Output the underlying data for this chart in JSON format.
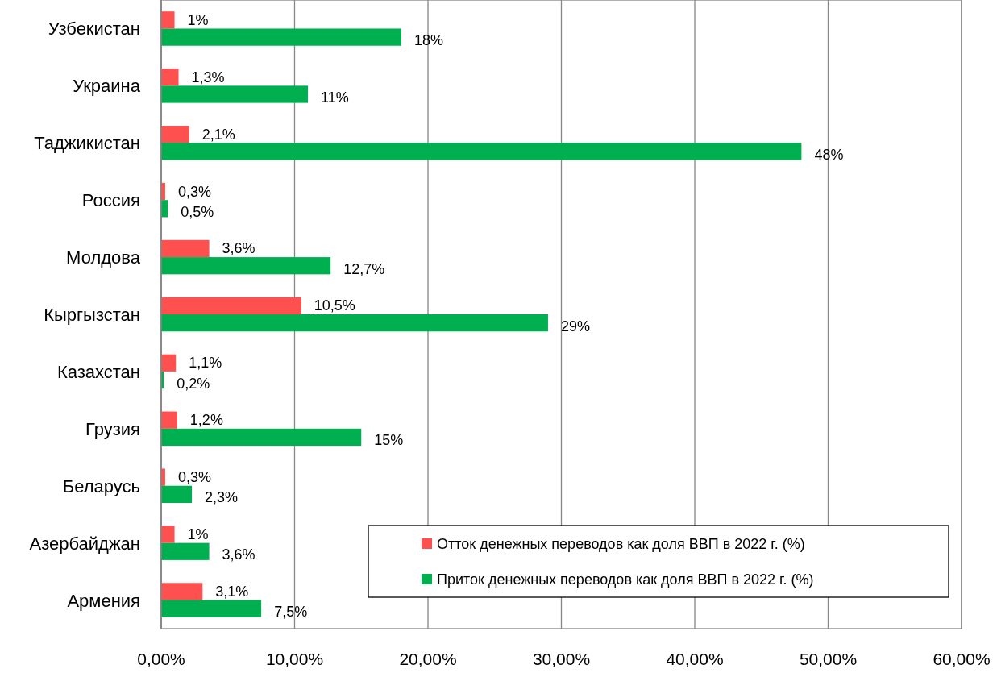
{
  "chart_data": {
    "type": "bar",
    "orientation": "horizontal",
    "categories": [
      "Узбекистан",
      "Украина",
      "Таджикистан",
      "Россия",
      "Молдова",
      "Кыргызстан",
      "Казахстан",
      "Грузия",
      "Беларусь",
      "Азербайджан",
      "Армения"
    ],
    "series": [
      {
        "name": "Отток денежных переводов как доля ВВП в 2022 г. (%)",
        "color": "#ff5050",
        "values": [
          1,
          1.3,
          2.1,
          0.3,
          3.6,
          10.5,
          1.1,
          1.2,
          0.3,
          1,
          3.1
        ],
        "value_labels": [
          "1%",
          "1,3%",
          "2,1%",
          "0,3%",
          "3,6%",
          "10,5%",
          "1,1%",
          "1,2%",
          "0,3%",
          "1%",
          "3,1%"
        ]
      },
      {
        "name": "Приток денежных переводов как доля ВВП в 2022 г. (%)",
        "color": "#00b050",
        "values": [
          18,
          11,
          48,
          0.5,
          12.7,
          29,
          0.2,
          15,
          2.3,
          3.6,
          7.5
        ],
        "value_labels": [
          "18%",
          "11%",
          "48%",
          "0,5%",
          "12,7%",
          "29%",
          "0,2%",
          "15%",
          "2,3%",
          "3,6%",
          "7,5%"
        ]
      }
    ],
    "xlim": [
      0,
      60
    ],
    "xticks": [
      {
        "value": 0,
        "label": "0,00%"
      },
      {
        "value": 10,
        "label": "10,00%"
      },
      {
        "value": 20,
        "label": "20,00%"
      },
      {
        "value": 30,
        "label": "30,00%"
      },
      {
        "value": 40,
        "label": "40,00%"
      },
      {
        "value": 50,
        "label": "50,00%"
      },
      {
        "value": 60,
        "label": "60,00%"
      }
    ],
    "grid": "x",
    "legend": "bottom right"
  }
}
